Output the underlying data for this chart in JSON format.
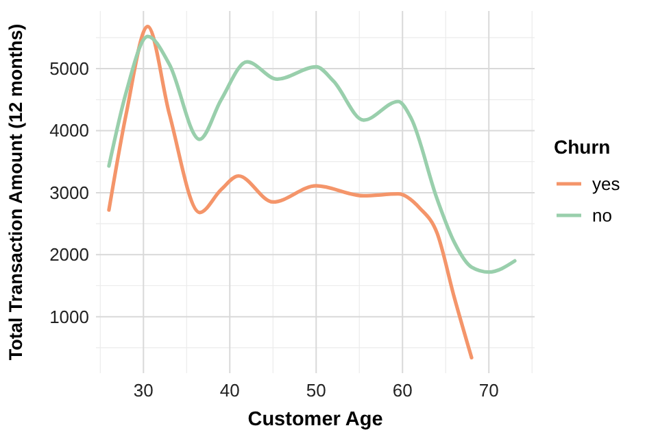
{
  "chart_data": {
    "type": "line",
    "xlabel": "Customer Age",
    "ylabel": "Total Transaction Amount (12 months)",
    "legend_title": "Churn",
    "legend": "right",
    "grid": true,
    "xlim": [
      24.5,
      75.3
    ],
    "ylim": [
      90,
      5930
    ],
    "xticks": [
      30,
      40,
      50,
      60,
      70
    ],
    "yticks": [
      1000,
      2000,
      3000,
      4000,
      5000
    ],
    "series": [
      {
        "name": "yes",
        "color": "#f4956a",
        "x": [
          26,
          28,
          30.5,
          33,
          36.5,
          39,
          41,
          45,
          50,
          55.5,
          59.5,
          62,
          64,
          66,
          68
        ],
        "values": [
          2720,
          4270,
          5680,
          4270,
          2680,
          3050,
          3270,
          2850,
          3110,
          2950,
          2980,
          2750,
          2350,
          1310,
          340
        ]
      },
      {
        "name": "no",
        "color": "#99cfac",
        "x": [
          26,
          28,
          30.5,
          33,
          36.5,
          39,
          42,
          45.5,
          50,
          52,
          55.5,
          59.5,
          61,
          64,
          66,
          68,
          70,
          73
        ],
        "values": [
          3430,
          4620,
          5520,
          5070,
          3860,
          4500,
          5110,
          4830,
          5030,
          4800,
          4170,
          4470,
          4200,
          2900,
          2200,
          1800,
          1720,
          1900
        ]
      }
    ]
  }
}
